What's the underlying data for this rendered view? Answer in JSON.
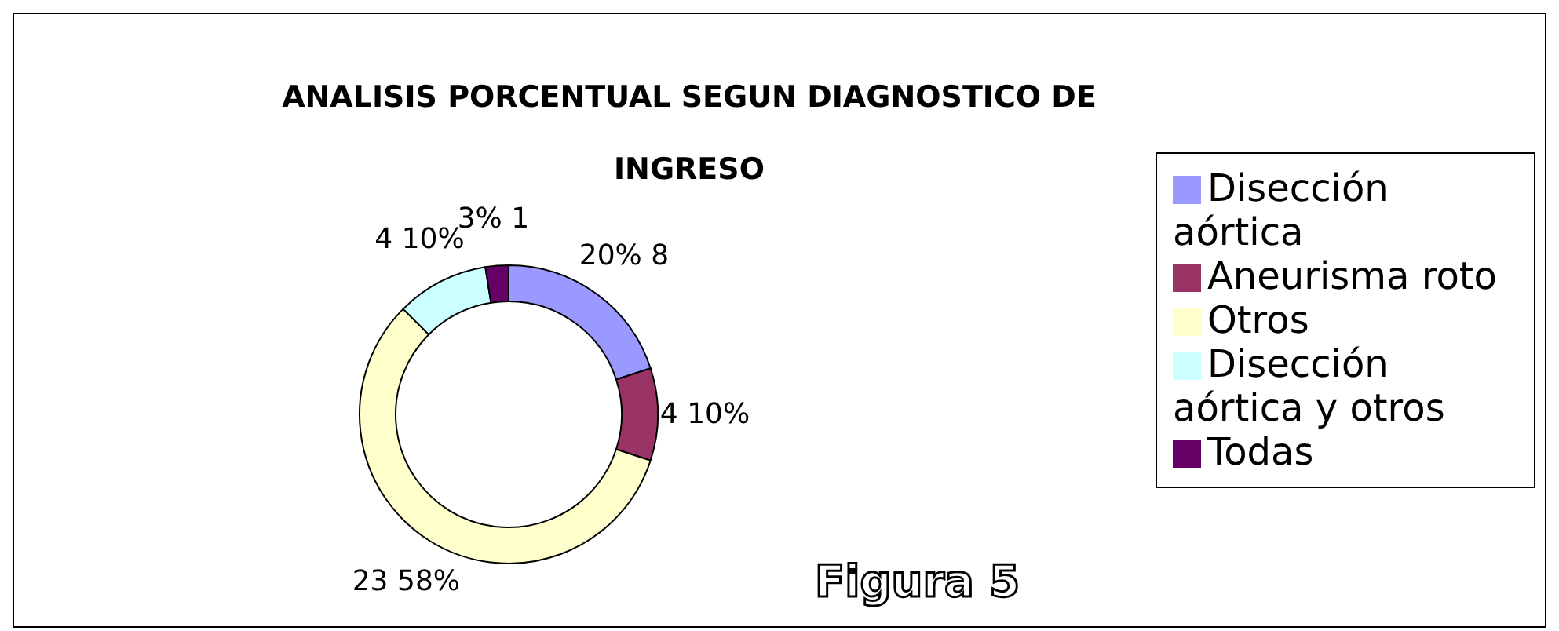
{
  "chart_data": {
    "type": "donut",
    "title": "ANALISIS PORCENTUAL SEGUN DIAGNOSTICO DE INGRESO",
    "categories": [
      "Disección aórtica",
      "Aneurisma roto",
      "Otros",
      "Disección aórtica y otros",
      "Todas"
    ],
    "values": [
      8,
      4,
      23,
      4,
      1
    ],
    "colors": [
      "#9999ff",
      "#993366",
      "#ffffcc",
      "#ccffff",
      "#660066"
    ],
    "value_labels": [
      "20% 8",
      "4 10%",
      "23 58%",
      "4 10%",
      "3% 1"
    ],
    "legend": "right",
    "annotations": [
      "Figura 5"
    ]
  }
}
